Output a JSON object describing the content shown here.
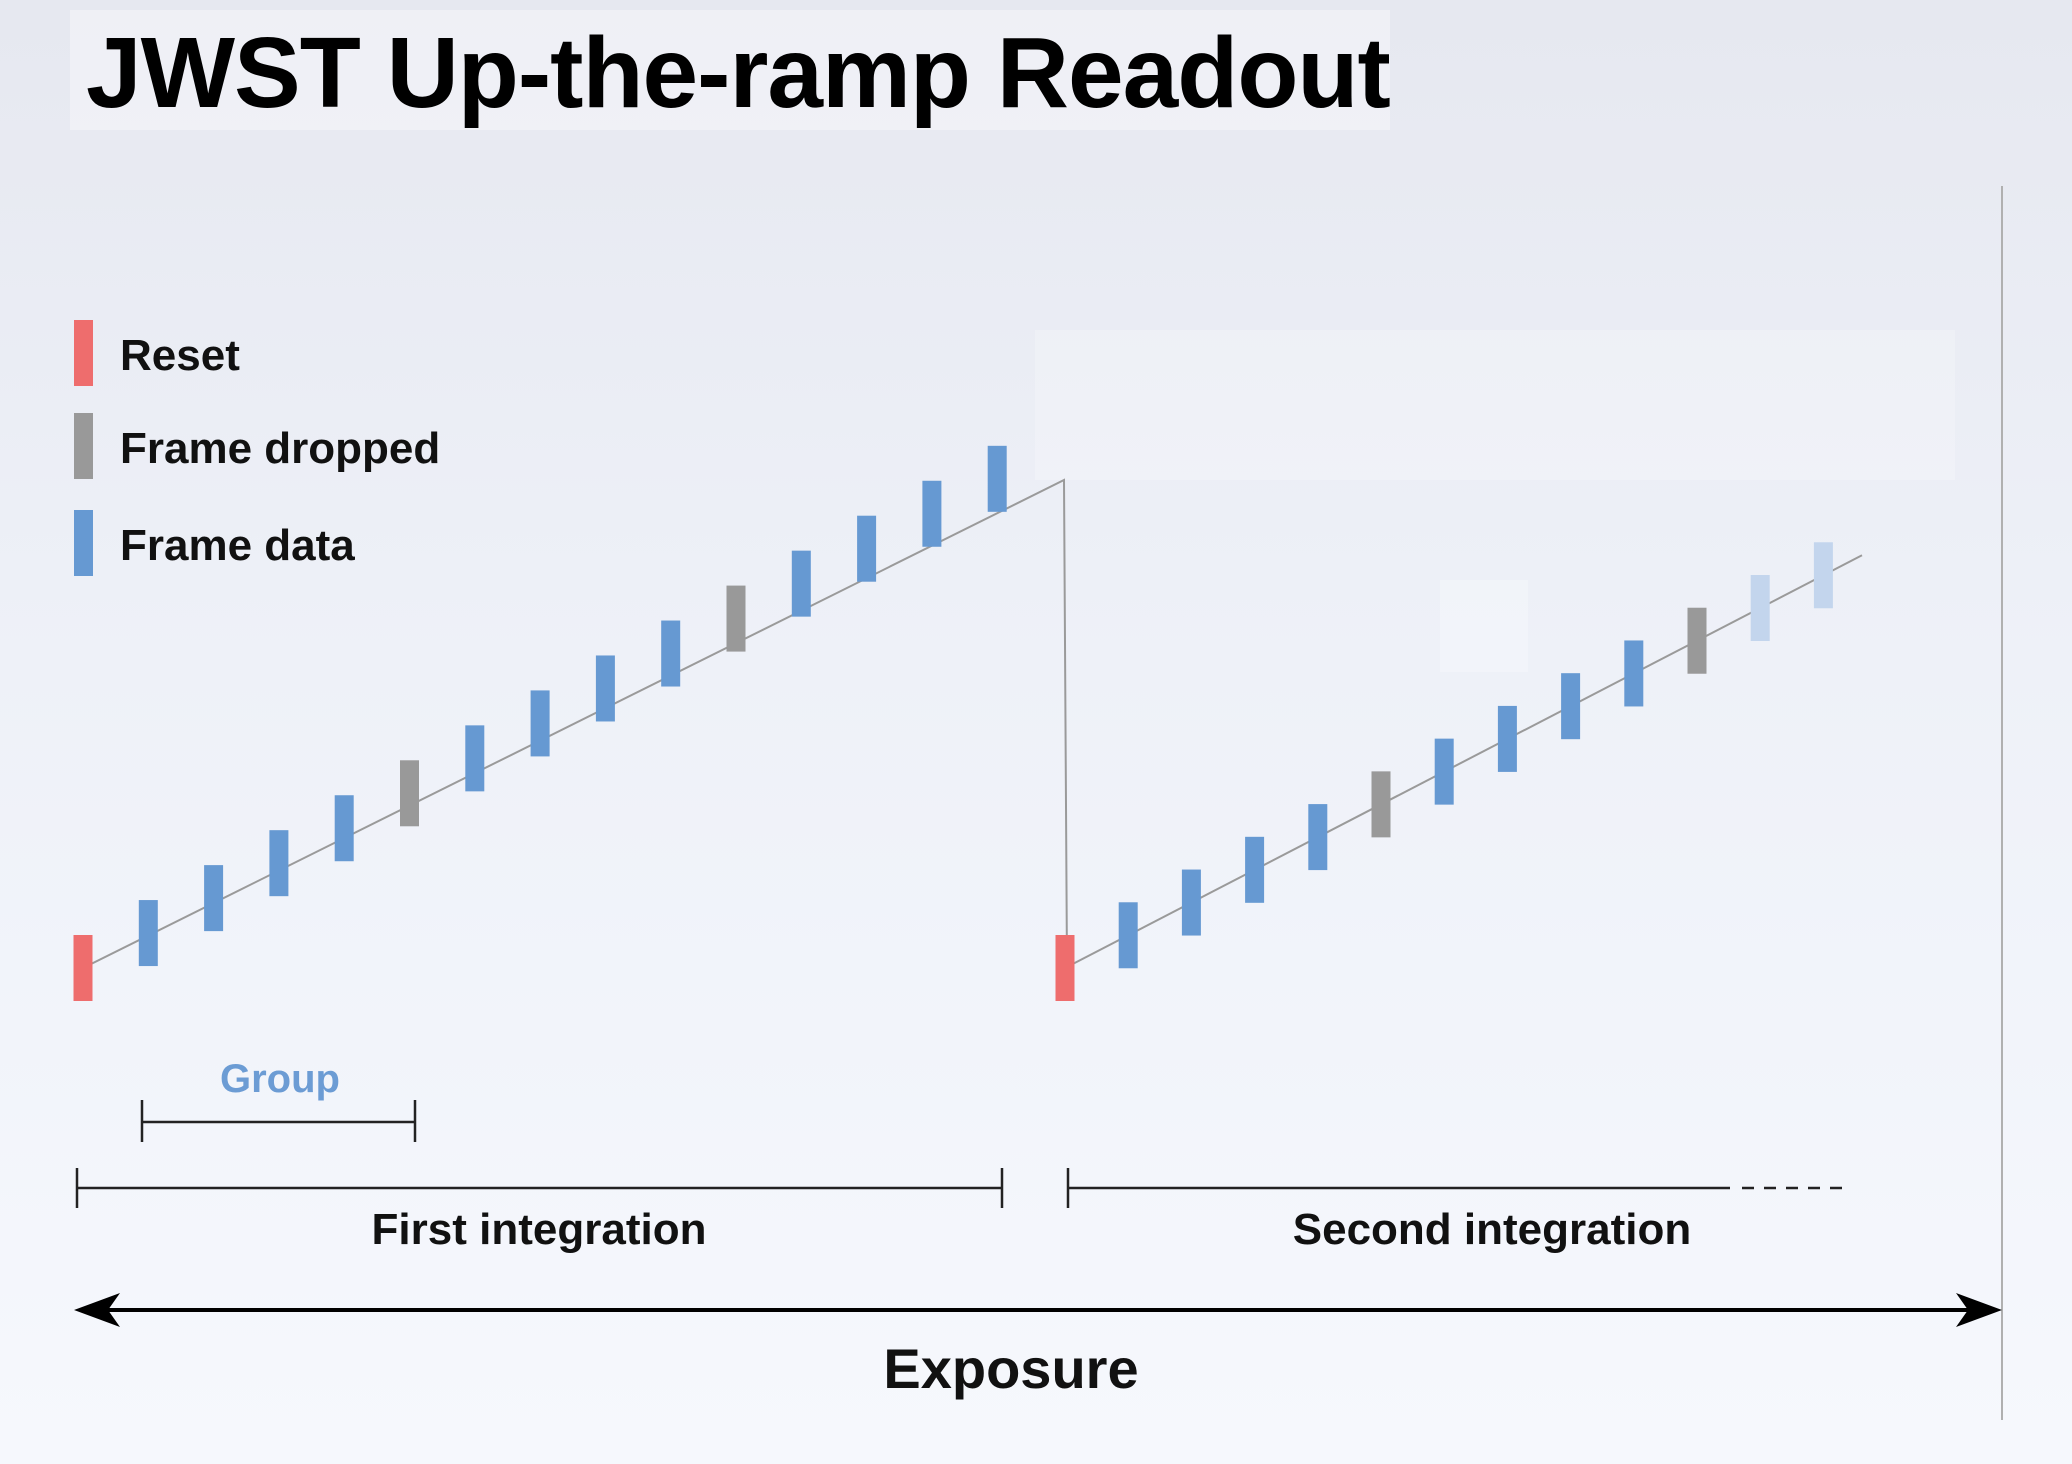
{
  "title": "JWST Up-the-ramp Readout",
  "colors": {
    "reset": "#ee6d6d",
    "dropped": "#999999",
    "frame": "#6699d2",
    "frame_faded": "#c3d5ed",
    "group_label": "#6c9cd4",
    "ramp_line": "#9a9a9a",
    "text": "#111111"
  },
  "legend": [
    {
      "kind": "reset",
      "label": "Reset"
    },
    {
      "kind": "dropped",
      "label": "Frame dropped"
    },
    {
      "kind": "frame",
      "label": "Frame data"
    }
  ],
  "integrations": [
    {
      "label": "First integration",
      "frames": [
        "reset",
        "frame",
        "frame",
        "frame",
        "frame",
        "dropped",
        "frame",
        "frame",
        "frame",
        "frame",
        "dropped",
        "frame",
        "frame",
        "frame",
        "frame"
      ]
    },
    {
      "label": "Second integration",
      "frames": [
        "reset",
        "frame",
        "frame",
        "frame",
        "frame",
        "dropped",
        "frame",
        "frame",
        "frame",
        "frame",
        "dropped",
        "faded",
        "faded"
      ]
    }
  ],
  "group_label": "Group",
  "exposure_label": "Exposure"
}
